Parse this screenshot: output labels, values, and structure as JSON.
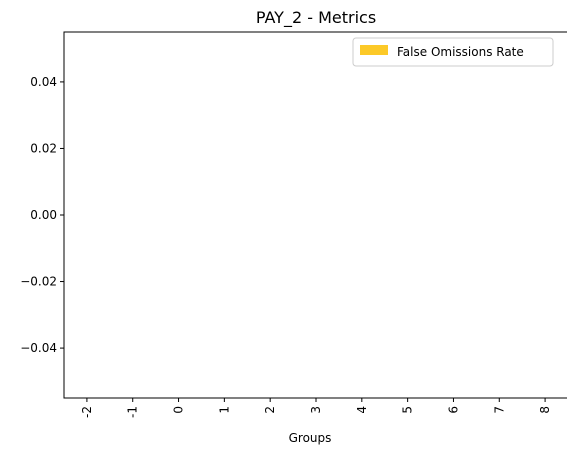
{
  "chart_data": {
    "type": "bar",
    "title": "PAY_2 - Metrics",
    "xlabel": "Groups",
    "ylabel": "",
    "categories": [
      "-2",
      "-1",
      "0",
      "1",
      "2",
      "3",
      "4",
      "5",
      "6",
      "7",
      "8"
    ],
    "series": [
      {
        "name": "False Omissions Rate",
        "values": [
          0,
          0,
          0,
          0,
          0,
          0,
          0,
          0,
          0,
          0,
          0
        ],
        "color": "#fcc928"
      }
    ],
    "ylim": [
      -0.055,
      0.055
    ],
    "yticks": [
      "0.04",
      "0.02",
      "0.00",
      "−0.02",
      "−0.04"
    ],
    "ytick_values": [
      0.04,
      0.02,
      0.0,
      -0.02,
      -0.04
    ],
    "legend": "top-right",
    "grid": false
  }
}
